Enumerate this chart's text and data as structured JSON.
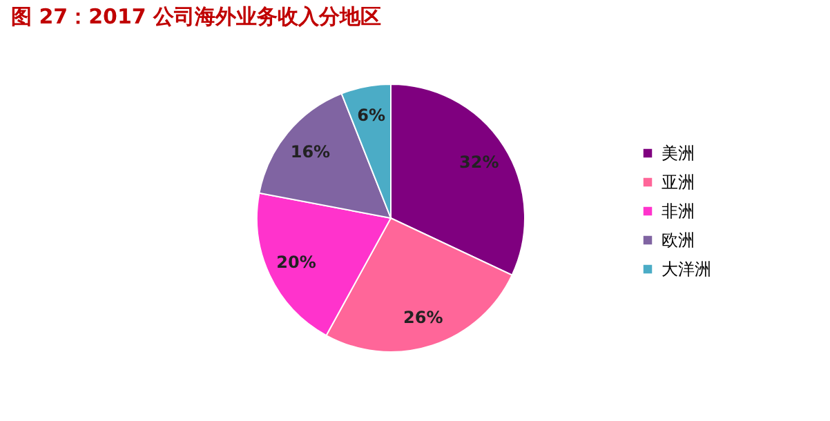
{
  "chart_data": {
    "type": "pie",
    "title": "图 27：2017 公司海外业务收入分地区",
    "categories": [
      "美洲",
      "亚洲",
      "非洲",
      "欧洲",
      "大洋洲"
    ],
    "values": [
      32,
      26,
      20,
      16,
      6
    ],
    "colors": [
      "#7f007f",
      "#ff6699",
      "#ff33cc",
      "#8064a2",
      "#4bacc6"
    ],
    "value_labels": [
      "32%",
      "26%",
      "20%",
      "16%",
      "6%"
    ],
    "legend": "right"
  }
}
